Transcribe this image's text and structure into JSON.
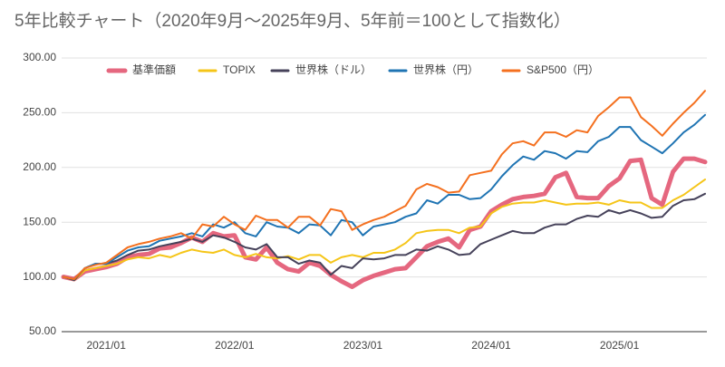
{
  "chart_data": {
    "type": "line",
    "title": "5年比較チャート（2020年9月〜2025年9月、5年前＝100として指数化）",
    "categories": [
      null,
      null,
      null,
      null,
      "2021/01",
      null,
      null,
      null,
      null,
      null,
      null,
      null,
      null,
      null,
      null,
      null,
      "2022/01",
      null,
      null,
      null,
      null,
      null,
      null,
      null,
      null,
      null,
      null,
      null,
      "2023/01",
      null,
      null,
      null,
      null,
      null,
      null,
      null,
      null,
      null,
      null,
      null,
      "2024/01",
      null,
      null,
      null,
      null,
      null,
      null,
      null,
      null,
      null,
      null,
      null,
      "2025/01",
      null,
      null,
      null,
      null,
      null,
      null,
      null,
      null
    ],
    "series": [
      {
        "name": "基準価額",
        "color": "#e5677f",
        "width": 5,
        "values": [
          100,
          98,
          105,
          107,
          109,
          112,
          118,
          120,
          121,
          126,
          127,
          131,
          136,
          132,
          140,
          137,
          138,
          118,
          116,
          127,
          113,
          107,
          105,
          113,
          110,
          102,
          96,
          91,
          97,
          101,
          104,
          107,
          108,
          118,
          128,
          132,
          135,
          127,
          143,
          146,
          160,
          166,
          171,
          173,
          174,
          176,
          191,
          195,
          173,
          172,
          172,
          183,
          190,
          206,
          207,
          172,
          166,
          196,
          208,
          208,
          205
        ]
      },
      {
        "name": "TOPIX",
        "color": "#f5c518",
        "width": 2,
        "values": [
          100,
          97,
          106,
          108,
          110,
          112,
          116,
          118,
          117,
          120,
          118,
          122,
          125,
          123,
          122,
          125,
          120,
          118,
          121,
          118,
          117,
          119,
          116,
          120,
          120,
          113,
          118,
          120,
          118,
          122,
          122,
          125,
          131,
          140,
          142,
          143,
          143,
          140,
          145,
          146,
          158,
          164,
          167,
          168,
          168,
          170,
          168,
          166,
          167,
          167,
          168,
          166,
          170,
          168,
          168,
          163,
          163,
          170,
          175,
          182,
          189
        ]
      },
      {
        "name": "世界株（ドル）",
        "color": "#46425a",
        "width": 2,
        "values": [
          100,
          97,
          108,
          112,
          112,
          115,
          120,
          124,
          125,
          128,
          130,
          132,
          135,
          132,
          138,
          136,
          132,
          127,
          125,
          130,
          118,
          118,
          112,
          115,
          113,
          102,
          110,
          108,
          117,
          116,
          117,
          120,
          120,
          125,
          124,
          128,
          125,
          120,
          121,
          130,
          134,
          138,
          142,
          140,
          140,
          145,
          148,
          148,
          153,
          156,
          155,
          161,
          158,
          161,
          158,
          154,
          155,
          165,
          170,
          171,
          176
        ]
      },
      {
        "name": "世界株（円）",
        "color": "#1f74b3",
        "width": 2,
        "values": [
          100,
          98,
          108,
          112,
          112,
          118,
          124,
          127,
          128,
          133,
          135,
          137,
          140,
          137,
          148,
          145,
          150,
          140,
          137,
          150,
          146,
          145,
          140,
          148,
          147,
          138,
          152,
          150,
          138,
          146,
          148,
          150,
          155,
          158,
          170,
          167,
          175,
          175,
          171,
          172,
          180,
          192,
          202,
          210,
          207,
          215,
          213,
          208,
          215,
          214,
          224,
          228,
          237,
          237,
          225,
          219,
          213,
          222,
          232,
          239,
          248
        ]
      },
      {
        "name": "S&P500（円）",
        "color": "#f4701f",
        "width": 2,
        "values": [
          100,
          98,
          108,
          111,
          113,
          120,
          127,
          130,
          132,
          135,
          137,
          140,
          135,
          148,
          146,
          155,
          148,
          143,
          156,
          152,
          152,
          145,
          155,
          155,
          147,
          162,
          160,
          143,
          148,
          152,
          155,
          160,
          165,
          180,
          185,
          182,
          177,
          178,
          193,
          195,
          197,
          212,
          222,
          224,
          220,
          232,
          232,
          228,
          234,
          232,
          247,
          255,
          264,
          264,
          246,
          238,
          229,
          240,
          250,
          259,
          270
        ]
      }
    ],
    "ylim": [
      50,
      300
    ],
    "yticks": [
      {
        "value": 50,
        "label": "50.00"
      },
      {
        "value": 100,
        "label": "100.00"
      },
      {
        "value": 150,
        "label": "150.00"
      },
      {
        "value": 200,
        "label": "200.00"
      },
      {
        "value": 250,
        "label": "250.00"
      },
      {
        "value": 300,
        "label": "300.00"
      }
    ],
    "grid": true,
    "legend": "top"
  }
}
